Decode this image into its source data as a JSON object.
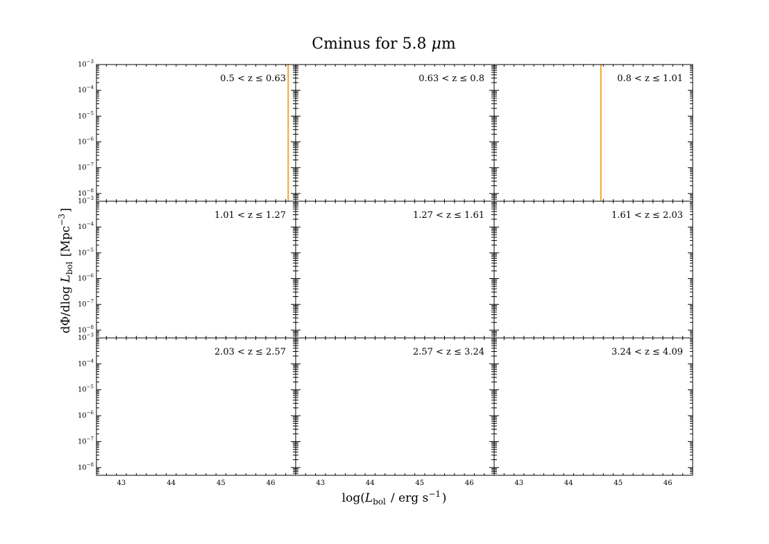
{
  "chart_data": {
    "type": "line",
    "title": "Cminus for 5.8 μm",
    "xlabel": "log(L_bol / erg s^-1)",
    "ylabel": "dΦ/dlog L_bol [Mpc^-3]",
    "xlim": [
      42.5,
      46.5
    ],
    "ylim_log10": [
      -8.3,
      -3
    ],
    "y_scale": "log",
    "x_ticks": [
      43,
      44,
      45,
      46
    ],
    "y_tick_exponents": [
      -3,
      -4,
      -5,
      -6,
      -7,
      -8
    ],
    "grid": false,
    "line_color": "#f5a623",
    "layout": "3x3 shared axes",
    "panels": [
      {
        "label": "0.5 < z ≤ 0.63",
        "series": [
          {
            "x": [
              46.35,
              46.35
            ],
            "y_log10": [
              -3,
              -8.3
            ]
          }
        ]
      },
      {
        "label": "0.63 < z ≤ 0.8",
        "series": []
      },
      {
        "label": "0.8 < z ≤ 1.01",
        "series": [
          {
            "x": [
              44.65,
              44.65
            ],
            "y_log10": [
              -3,
              -8.3
            ]
          }
        ]
      },
      {
        "label": "1.01 < z ≤ 1.27",
        "series": []
      },
      {
        "label": "1.27 < z ≤ 1.61",
        "series": []
      },
      {
        "label": "1.61 < z ≤ 2.03",
        "series": []
      },
      {
        "label": "2.03 < z ≤ 2.57",
        "series": []
      },
      {
        "label": "2.57 < z ≤ 3.24",
        "series": []
      },
      {
        "label": "3.24 < z ≤ 4.09",
        "series": []
      }
    ]
  }
}
